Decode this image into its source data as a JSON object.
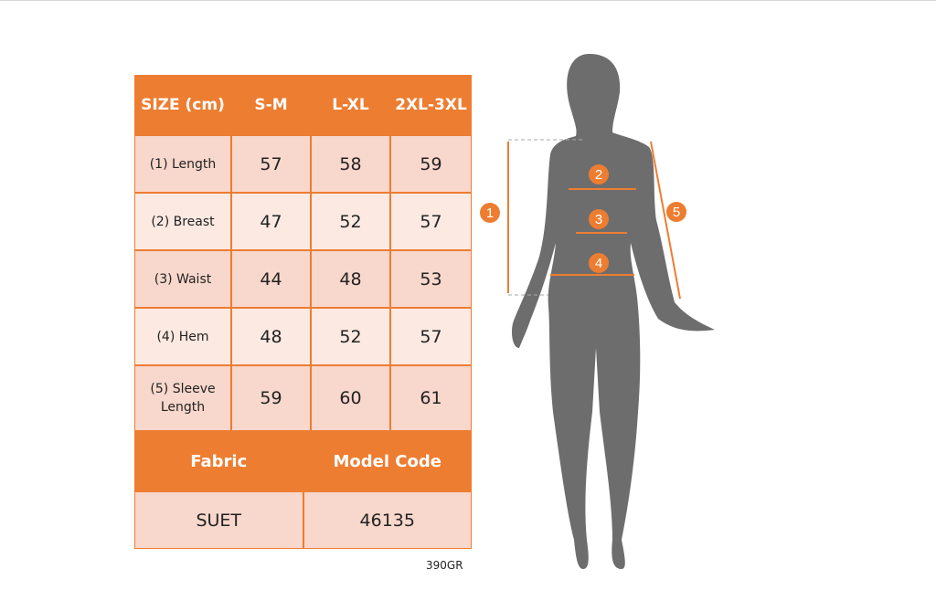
{
  "table": {
    "header": [
      "SIZE (cm)",
      "S-M",
      "L-XL",
      "2XL-3XL"
    ],
    "rows": [
      {
        "label": "(1) Length",
        "values": [
          "57",
          "58",
          "59"
        ]
      },
      {
        "label": "(2) Breast",
        "values": [
          "47",
          "52",
          "57"
        ]
      },
      {
        "label": "(3) Waist",
        "values": [
          "44",
          "48",
          "53"
        ]
      },
      {
        "label": "(4) Hem",
        "values": [
          "48",
          "52",
          "57"
        ]
      },
      {
        "label": "(5) Sleeve Length",
        "values": [
          "59",
          "60",
          "61"
        ]
      }
    ],
    "footer_headers": [
      "Fabric",
      "Model Code"
    ],
    "footer_values": [
      "SUET",
      "46135"
    ]
  },
  "note": "390GR",
  "figure": {
    "markers": [
      "1",
      "2",
      "3",
      "4",
      "5"
    ]
  },
  "colors": {
    "accent": "#ed7d31",
    "row_dark": "#f8d7cc",
    "row_light": "#fce9e2",
    "silhouette": "#6d6d6d"
  }
}
